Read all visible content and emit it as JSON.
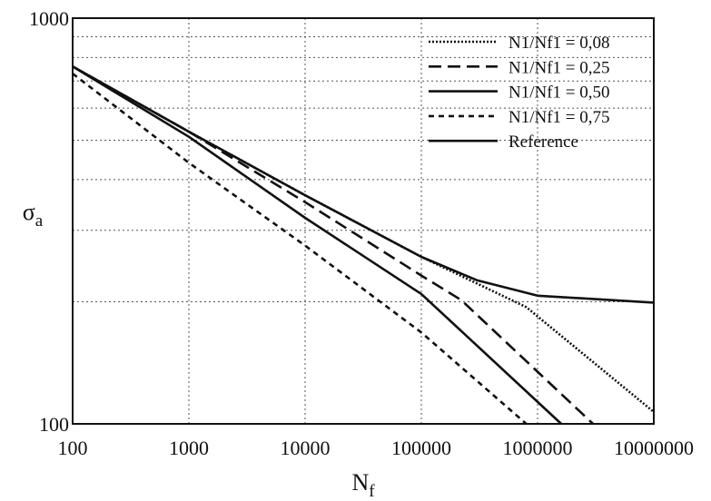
{
  "chart_data": {
    "type": "line",
    "xscale": "log",
    "yscale": "log",
    "xlim": [
      100,
      10000000
    ],
    "ylim": [
      100,
      1000
    ],
    "xlabel": "N",
    "xlabel_sub": "f",
    "ylabel": "σ",
    "ylabel_sub": "a",
    "x_ticks": [
      "100",
      "1000",
      "10000",
      "100000",
      "1000000",
      "10000000"
    ],
    "y_ticks": [
      "100",
      "1000"
    ],
    "y_minor_gridlines": [
      200,
      300,
      400,
      500,
      600,
      700,
      800,
      900
    ],
    "grid": true,
    "legend_position": "top-right",
    "series": [
      {
        "name": "N1/Nf1 = 0,08",
        "style": "dotted",
        "points": [
          [
            100,
            760
          ],
          [
            1000,
            525
          ],
          [
            10000,
            366
          ],
          [
            100000,
            258
          ],
          [
            800000,
            194
          ],
          [
            10000000,
            107
          ]
        ]
      },
      {
        "name": "N1/Nf1 = 0,25",
        "style": "dashed",
        "points": [
          [
            100,
            760
          ],
          [
            1000,
            525
          ],
          [
            10000,
            352
          ],
          [
            100000,
            232
          ],
          [
            220000,
            202
          ],
          [
            3000000,
            100
          ]
        ]
      },
      {
        "name": "N1/Nf1 = 0,50",
        "style": "solid",
        "points": [
          [
            100,
            760
          ],
          [
            1000,
            510
          ],
          [
            10000,
            322
          ],
          [
            100000,
            209
          ],
          [
            1600000,
            100
          ]
        ]
      },
      {
        "name": "N1/Nf1 = 0,75",
        "style": "short-dashed",
        "points": [
          [
            100,
            730
          ],
          [
            1000,
            440
          ],
          [
            10000,
            275
          ],
          [
            100000,
            168
          ],
          [
            800000,
            100
          ]
        ]
      },
      {
        "name": "Reference",
        "style": "solid",
        "points": [
          [
            100,
            760
          ],
          [
            1000,
            525
          ],
          [
            10000,
            366
          ],
          [
            100000,
            258
          ],
          [
            300000,
            226
          ],
          [
            1000000,
            207
          ],
          [
            10000000,
            199
          ]
        ]
      }
    ]
  }
}
